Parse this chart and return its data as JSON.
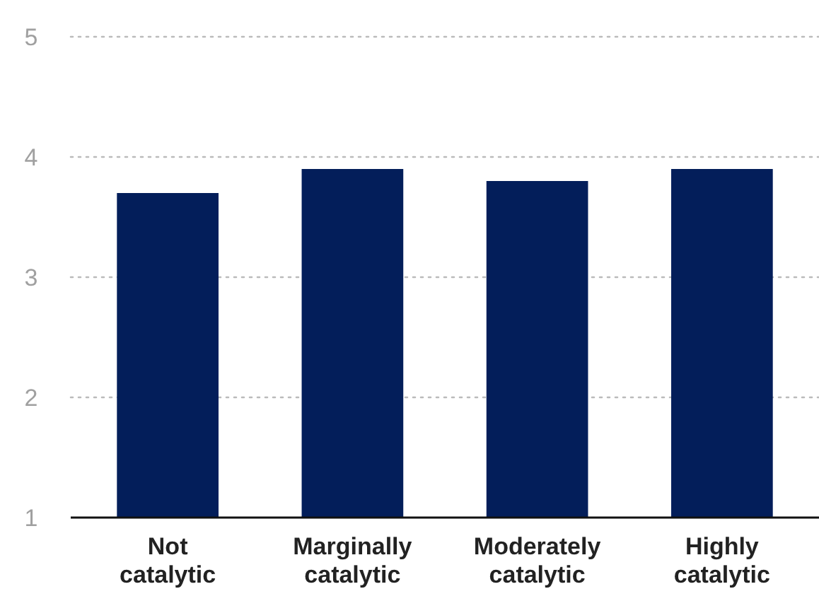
{
  "chart_data": {
    "type": "bar",
    "categories": [
      "Not catalytic",
      "Marginally catalytic",
      "Moderately catalytic",
      "Highly catalytic"
    ],
    "values": [
      3.7,
      3.9,
      3.8,
      3.9
    ],
    "color": "#031e5a",
    "ylim": [
      1,
      5
    ],
    "yticks": [
      1,
      2,
      3,
      4,
      5
    ],
    "grid": "y"
  }
}
